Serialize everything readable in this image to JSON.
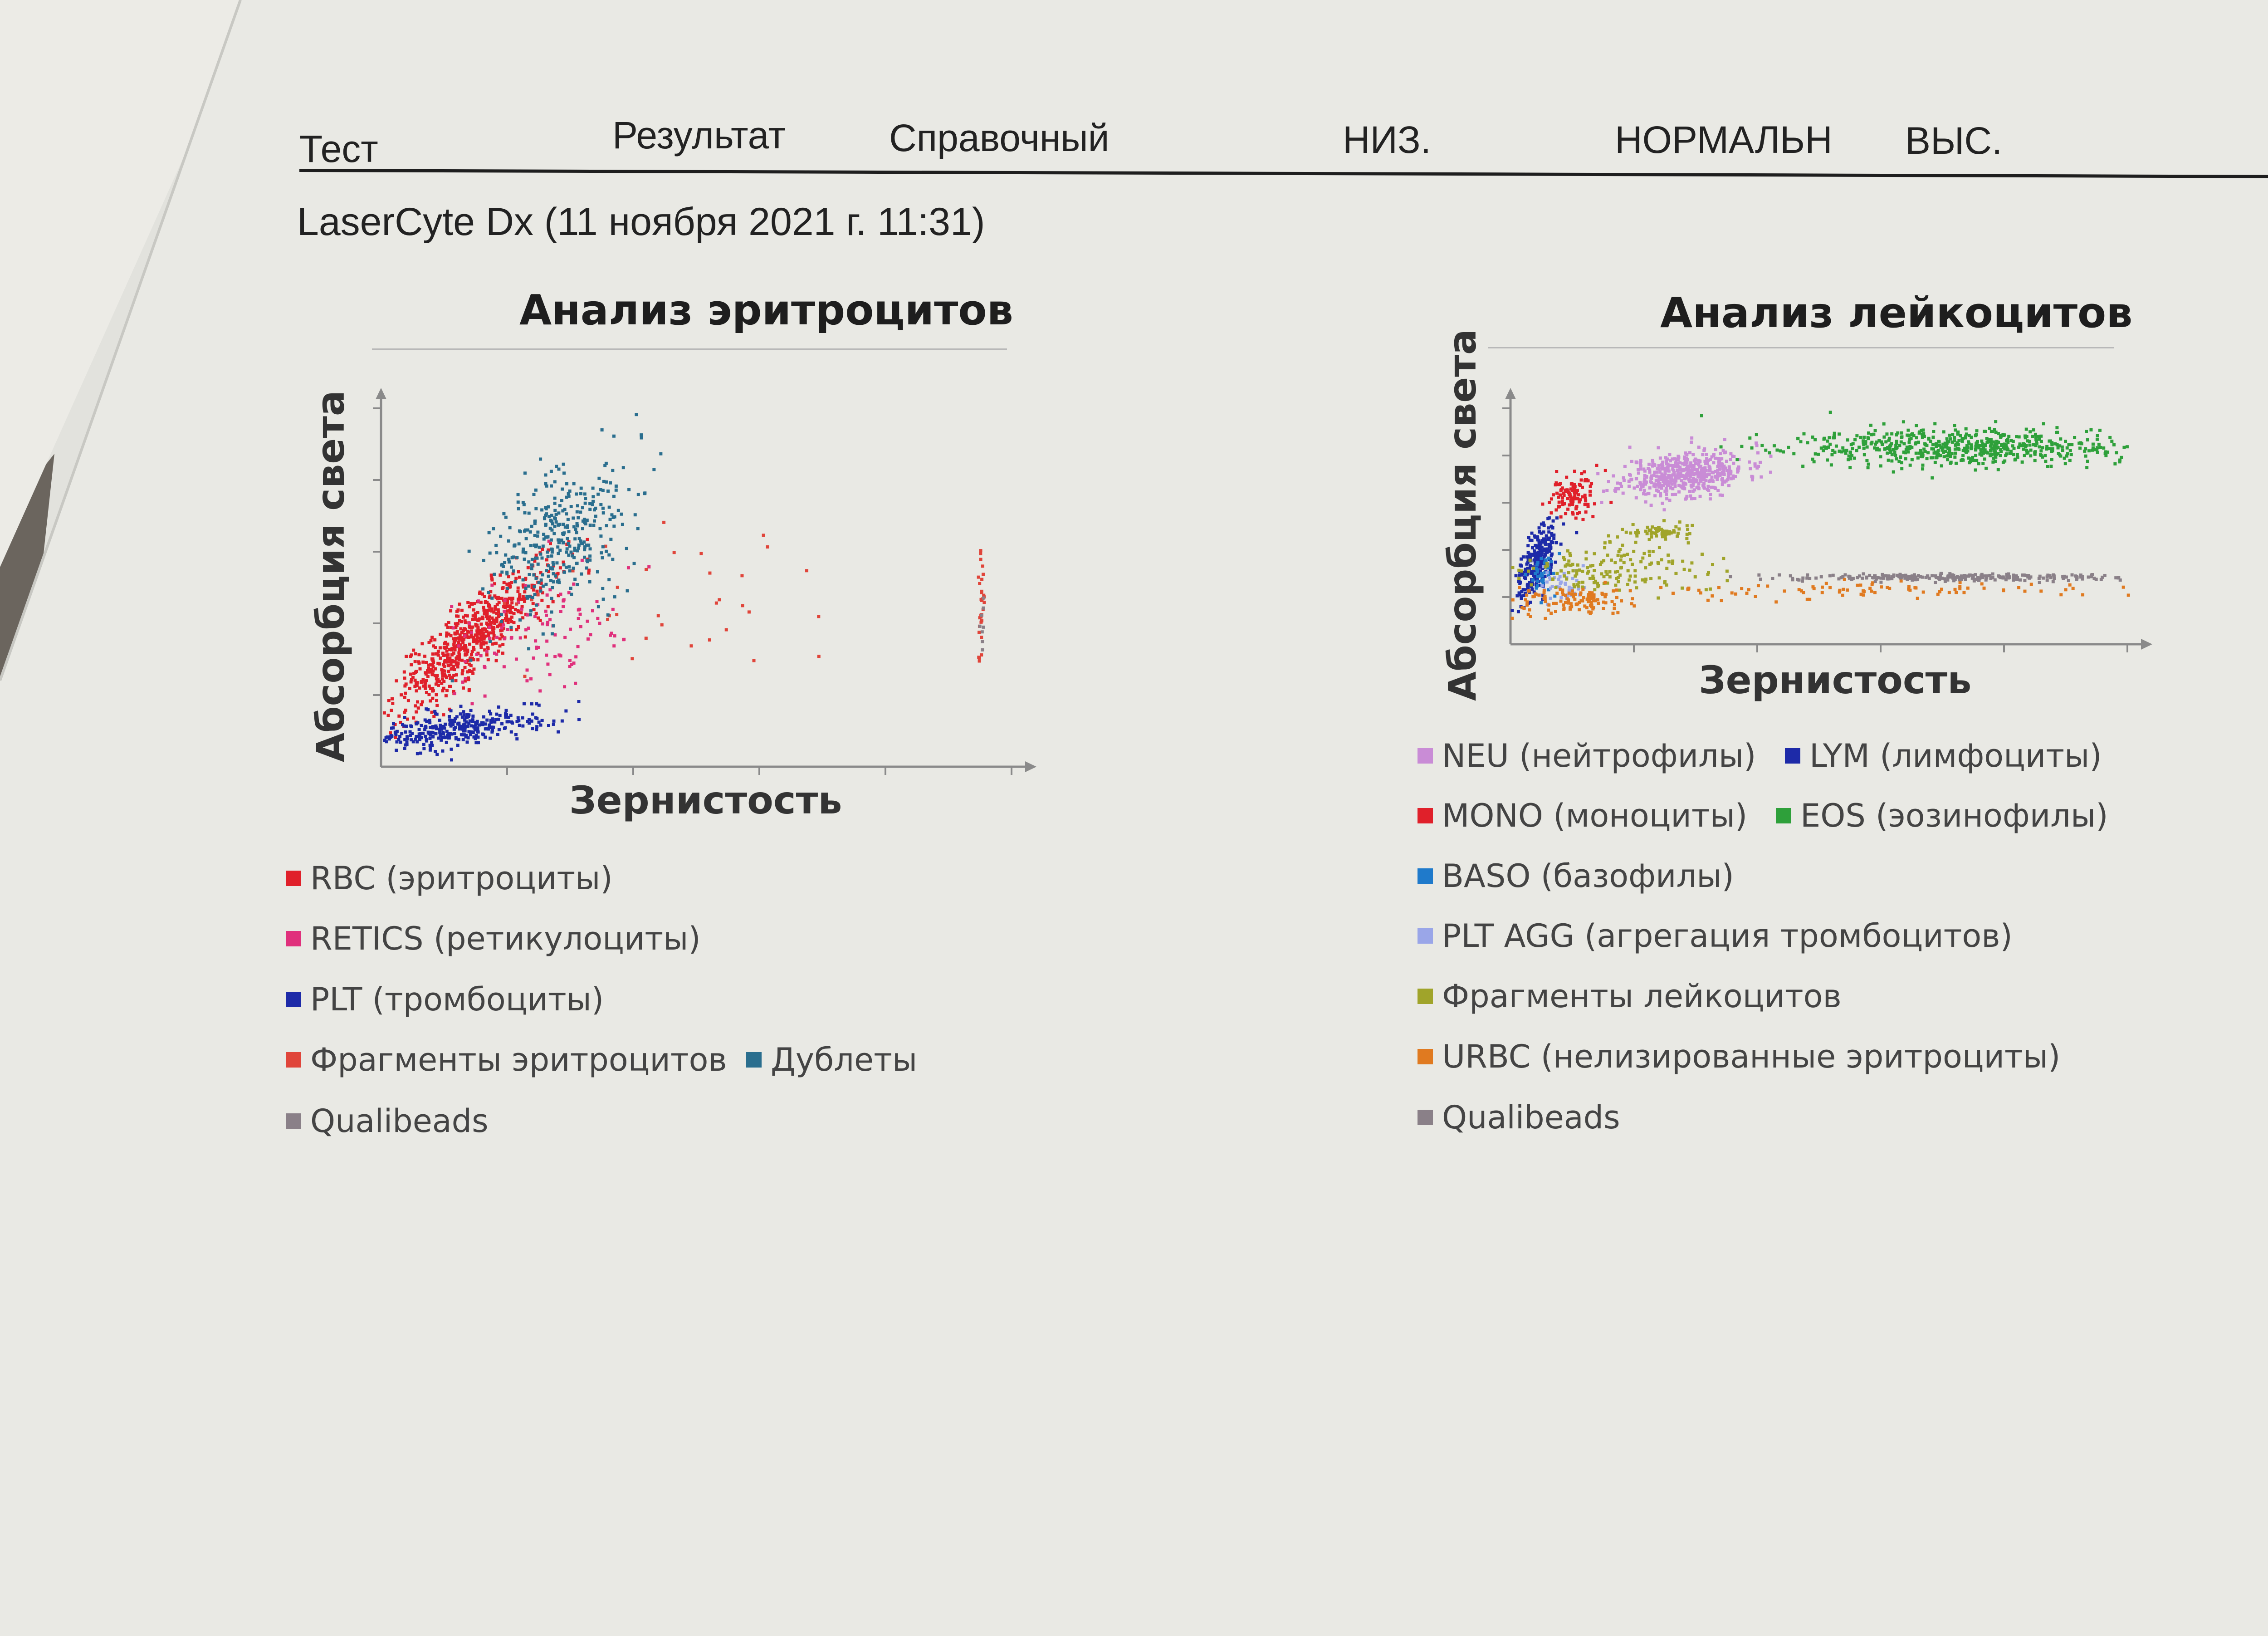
{
  "header": {
    "columns": [
      "Тест",
      "Результат",
      "Справочный",
      "НИЗ.",
      "НОРМАЛЬН",
      "ВЫС."
    ]
  },
  "instrument_line": "LaserCyte Dx (11 ноября 2021 г. 11:31)",
  "chart_data": [
    {
      "type": "scatter",
      "title": "Анализ эритроцитов",
      "xlabel": "Зернистость",
      "ylabel": "Абсорбция света",
      "xlim": [
        0,
        100
      ],
      "ylim": [
        0,
        100
      ],
      "grid": false,
      "legend_position": "bottom",
      "series": [
        {
          "name": "RBC (эритроциты)",
          "color": "#e0202a",
          "clusters": [
            {
              "cx": 14,
              "cy": 36,
              "sx": 6,
              "sy": 10,
              "n": 650,
              "corr": 0.85
            }
          ]
        },
        {
          "name": "RETICS (ретикулоциты)",
          "color": "#e0307c",
          "clusters": [
            {
              "cx": 26,
              "cy": 38,
              "sx": 8,
              "sy": 9,
              "n": 110,
              "corr": 0.4
            }
          ]
        },
        {
          "name": "PLT (тромбоциты)",
          "color": "#1d2aa8",
          "clusters": [
            {
              "cx": 12,
              "cy": 11,
              "sx": 7,
              "sy": 3,
              "n": 320,
              "corr": 0.5
            }
          ]
        },
        {
          "name": "Фрагменты эритроцитов",
          "color": "#e0453a",
          "clusters": [
            {
              "cx": 44,
              "cy": 48,
              "sx": 14,
              "sy": 10,
              "n": 35,
              "corr": 0.2
            },
            {
              "cx": 95,
              "cy": 42,
              "sx": 0.3,
              "sy": 9,
              "n": 30,
              "corr": 0
            }
          ]
        },
        {
          "name": "Дублеты",
          "color": "#2a6e8e",
          "clusters": [
            {
              "cx": 28,
              "cy": 64,
              "sx": 6,
              "sy": 11,
              "n": 360,
              "corr": 0.55
            }
          ]
        },
        {
          "name": "Qualibeads",
          "color": "#8a8088",
          "clusters": [
            {
              "cx": 95,
              "cy": 40,
              "sx": 0.3,
              "sy": 4,
              "n": 8,
              "corr": 0
            }
          ]
        }
      ]
    },
    {
      "type": "scatter",
      "title": "Анализ лейкоцитов",
      "xlabel": "Зернистость",
      "ylabel": "Абсорбция света",
      "xlim": [
        0,
        100
      ],
      "ylim": [
        0,
        100
      ],
      "grid": false,
      "legend_position": "bottom",
      "series": [
        {
          "name": "NEU (нейтрофилы)",
          "color": "#c98cd6",
          "clusters": [
            {
              "cx": 28,
              "cy": 73,
              "sx": 5,
              "sy": 5,
              "n": 520,
              "corr": 0.3
            }
          ]
        },
        {
          "name": "LYM (лимфоциты)",
          "color": "#1d2aa8",
          "clusters": [
            {
              "cx": 4,
              "cy": 36,
              "sx": 1.4,
              "sy": 8,
              "n": 260,
              "corr": 0.6
            }
          ]
        },
        {
          "name": "MONO (моноциты)",
          "color": "#e0202a",
          "clusters": [
            {
              "cx": 10,
              "cy": 64,
              "sx": 2,
              "sy": 5,
              "n": 110,
              "corr": 0.3
            }
          ]
        },
        {
          "name": "EOS (эозинофилы)",
          "color": "#2ea03a",
          "clusters": [
            {
              "cx": 74,
              "cy": 84,
              "sx": 14,
              "sy": 4,
              "n": 620,
              "corr": 0
            }
          ]
        },
        {
          "name": "BASO (базофилы)",
          "color": "#1f7acb",
          "clusters": [
            {
              "cx": 5,
              "cy": 30,
              "sx": 1,
              "sy": 4,
              "n": 40,
              "corr": 0.3
            }
          ]
        },
        {
          "name": "PLT AGG (агрегация тромбоцитов)",
          "color": "#9aa6e8",
          "clusters": [
            {
              "cx": 8,
              "cy": 26,
              "sx": 2,
              "sy": 3,
              "n": 40,
              "corr": 0
            }
          ]
        },
        {
          "name": "Фрагменты лейкоцитов",
          "color": "#a0a42a",
          "clusters": [
            {
              "cx": 16,
              "cy": 32,
              "sx": 8,
              "sy": 6,
              "n": 160,
              "corr": 0
            },
            {
              "cx": 24,
              "cy": 48,
              "sx": 3,
              "sy": 1.5,
              "n": 60,
              "corr": 0
            }
          ]
        },
        {
          "name": "URBC (нелизированные эритроциты)",
          "color": "#e07a20",
          "clusters": [
            {
              "cx": 10,
              "cy": 19,
              "sx": 5,
              "sy": 3,
              "n": 120,
              "corr": 0
            },
            {
              "cx": 60,
              "cy": 24,
              "sx": 20,
              "sy": 2,
              "n": 90,
              "corr": 0
            }
          ]
        },
        {
          "name": "Qualibeads",
          "color": "#8a8088",
          "clusters": [
            {
              "cx": 72,
              "cy": 29,
              "sx": 14,
              "sy": 0.8,
              "n": 260,
              "corr": 0
            }
          ]
        }
      ]
    }
  ]
}
